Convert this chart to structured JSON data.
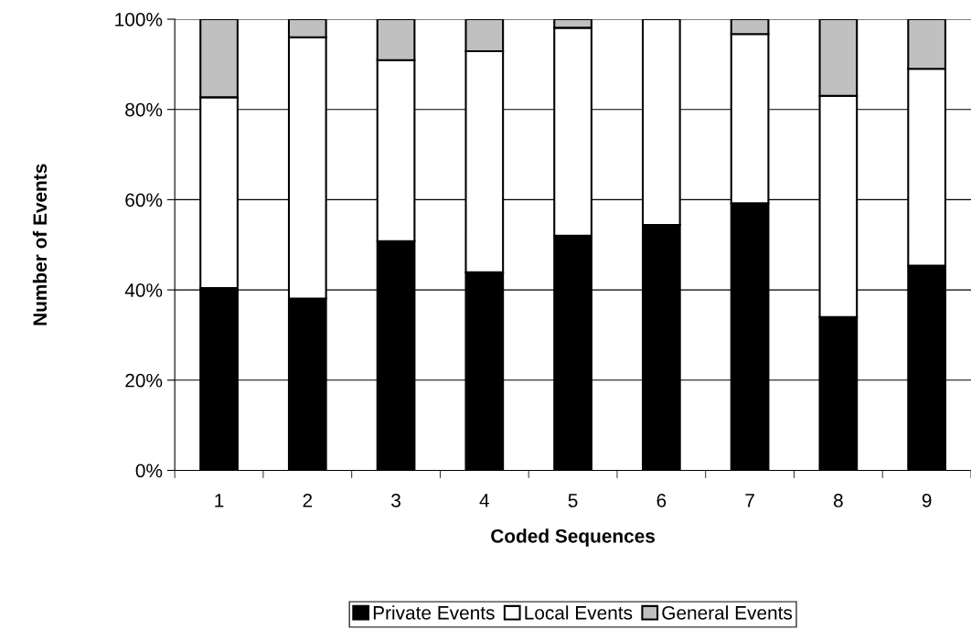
{
  "chart_data": {
    "type": "bar",
    "stacked": true,
    "xlabel": "Coded Sequences",
    "ylabel": "Number of Events",
    "categories": [
      "1",
      "2",
      "3",
      "4",
      "5",
      "6",
      "7",
      "8",
      "9"
    ],
    "series": [
      {
        "name": "Private Events",
        "color": "#000000",
        "values": [
          40.4,
          38.1,
          50.8,
          43.9,
          52.0,
          54.4,
          59.2,
          34.0,
          45.4
        ]
      },
      {
        "name": "Local Events",
        "color": "#ffffff",
        "values": [
          42.3,
          57.9,
          40.1,
          49.0,
          46.1,
          45.6,
          37.5,
          49.0,
          43.6
        ]
      },
      {
        "name": "General Events",
        "color": "#c0c0c0",
        "values": [
          17.3,
          4.0,
          9.1,
          7.1,
          1.9,
          null,
          3.3,
          17.0,
          11.0
        ]
      }
    ],
    "ylim": [
      0,
      100
    ],
    "yticks": [
      {
        "value": 0,
        "label": "0%"
      },
      {
        "value": 20,
        "label": "20%"
      },
      {
        "value": 40,
        "label": "40%"
      },
      {
        "value": 60,
        "label": "60%"
      },
      {
        "value": 80,
        "label": "80%"
      },
      {
        "value": 100,
        "label": "100%"
      }
    ],
    "grid": "y",
    "legend": "bottom"
  }
}
